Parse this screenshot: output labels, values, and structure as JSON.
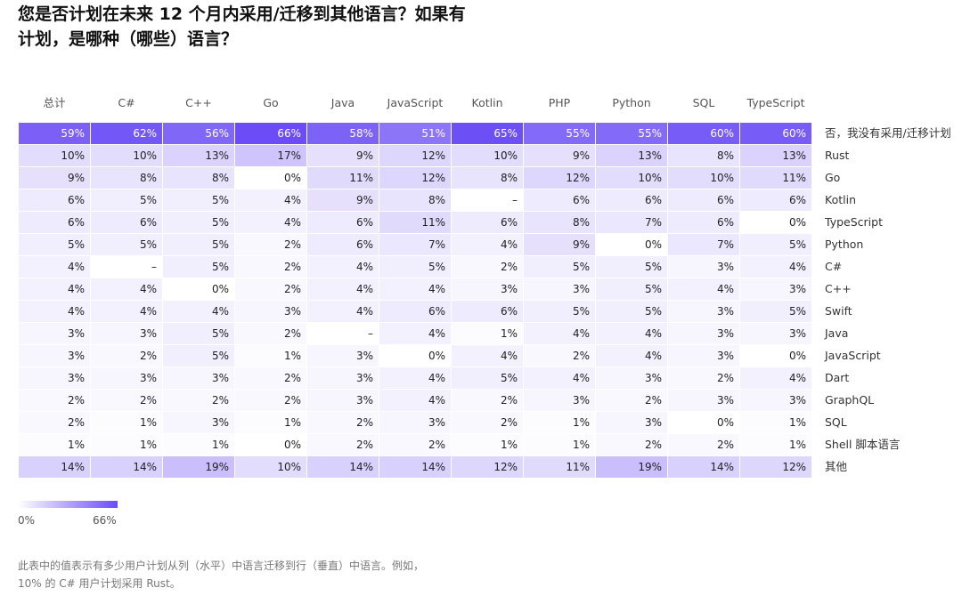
{
  "title": "您是否计划在未来 12 个月内采用/迁移到其他语言？如果有计划，是哪种（哪些）语言？",
  "chart_data": {
    "type": "heatmap",
    "columns": [
      "总计",
      "C#",
      "C++",
      "Go",
      "Java",
      "JavaScript",
      "Kotlin",
      "PHP",
      "Python",
      "SQL",
      "TypeScript"
    ],
    "rows": [
      {
        "label": "否，我没有采用/迁移计划",
        "values": [
          "59%",
          "62%",
          "56%",
          "66%",
          "58%",
          "51%",
          "65%",
          "55%",
          "55%",
          "60%",
          "60%"
        ]
      },
      {
        "label": "Rust",
        "values": [
          "10%",
          "10%",
          "13%",
          "17%",
          "9%",
          "12%",
          "10%",
          "9%",
          "13%",
          "8%",
          "13%"
        ]
      },
      {
        "label": "Go",
        "values": [
          "9%",
          "8%",
          "8%",
          "0%",
          "11%",
          "12%",
          "8%",
          "12%",
          "10%",
          "10%",
          "11%"
        ]
      },
      {
        "label": "Kotlin",
        "values": [
          "6%",
          "5%",
          "5%",
          "4%",
          "9%",
          "8%",
          "–",
          "6%",
          "6%",
          "6%",
          "6%"
        ]
      },
      {
        "label": "TypeScript",
        "values": [
          "6%",
          "6%",
          "5%",
          "4%",
          "6%",
          "11%",
          "6%",
          "8%",
          "7%",
          "6%",
          "0%"
        ]
      },
      {
        "label": "Python",
        "values": [
          "5%",
          "5%",
          "5%",
          "2%",
          "6%",
          "7%",
          "4%",
          "9%",
          "0%",
          "7%",
          "5%"
        ]
      },
      {
        "label": "C#",
        "values": [
          "4%",
          "–",
          "5%",
          "2%",
          "4%",
          "5%",
          "2%",
          "5%",
          "5%",
          "3%",
          "4%"
        ]
      },
      {
        "label": "C++",
        "values": [
          "4%",
          "4%",
          "0%",
          "2%",
          "4%",
          "4%",
          "3%",
          "3%",
          "5%",
          "4%",
          "3%"
        ]
      },
      {
        "label": "Swift",
        "values": [
          "4%",
          "4%",
          "4%",
          "3%",
          "4%",
          "6%",
          "6%",
          "5%",
          "5%",
          "3%",
          "5%"
        ]
      },
      {
        "label": "Java",
        "values": [
          "3%",
          "3%",
          "5%",
          "2%",
          "–",
          "4%",
          "1%",
          "4%",
          "4%",
          "3%",
          "3%"
        ]
      },
      {
        "label": "JavaScript",
        "values": [
          "3%",
          "2%",
          "5%",
          "1%",
          "3%",
          "0%",
          "4%",
          "2%",
          "4%",
          "3%",
          "0%"
        ]
      },
      {
        "label": "Dart",
        "values": [
          "3%",
          "3%",
          "3%",
          "2%",
          "3%",
          "4%",
          "5%",
          "4%",
          "3%",
          "2%",
          "4%"
        ]
      },
      {
        "label": "GraphQL",
        "values": [
          "2%",
          "2%",
          "2%",
          "2%",
          "3%",
          "4%",
          "2%",
          "3%",
          "2%",
          "3%",
          "3%"
        ]
      },
      {
        "label": "SQL",
        "values": [
          "2%",
          "1%",
          "3%",
          "1%",
          "2%",
          "3%",
          "2%",
          "1%",
          "3%",
          "0%",
          "1%"
        ]
      },
      {
        "label": "Shell 脚本语言",
        "values": [
          "1%",
          "1%",
          "1%",
          "0%",
          "2%",
          "2%",
          "1%",
          "1%",
          "2%",
          "2%",
          "1%"
        ]
      },
      {
        "label": "其他",
        "values": [
          "14%",
          "14%",
          "19%",
          "10%",
          "14%",
          "14%",
          "12%",
          "11%",
          "19%",
          "14%",
          "12%"
        ]
      }
    ],
    "scale": {
      "min_label": "0%",
      "max_label": "66%",
      "min": 0,
      "max": 66
    },
    "colors": {
      "low": "#ffffff",
      "high": "#6b4cf6"
    }
  },
  "footnote": "此表中的值表示有多少用户计划从列（水平）中语言迁移到行（垂直）中语言。例如，10% 的 C# 用户计划采用 Rust。"
}
